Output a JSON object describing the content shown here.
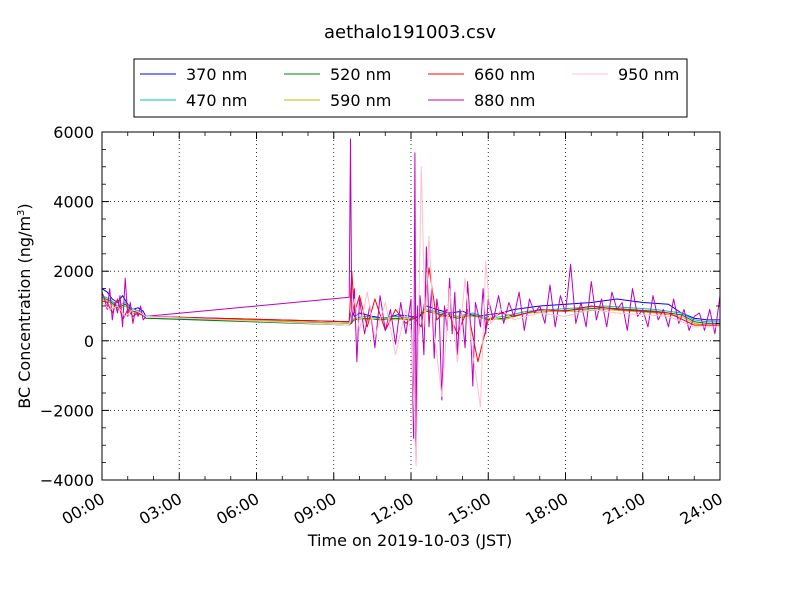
{
  "chart_data": {
    "type": "line",
    "title": "aethalo191003.csv",
    "xlabel": "Time on 2019-10-03 (JST)",
    "ylabel": "BC Concentration (ng/m³)",
    "ylabel_base": "BC Concentration (ng/m",
    "ylabel_sup": "3",
    "ylabel_close": ")",
    "xlim": [
      0,
      24
    ],
    "ylim": [
      -4000,
      6000
    ],
    "grid": true,
    "legend": "top-center",
    "x_ticks": [
      0,
      3,
      6,
      9,
      12,
      15,
      18,
      21,
      24
    ],
    "x_tick_labels": [
      "00:00",
      "03:00",
      "06:00",
      "09:00",
      "12:00",
      "15:00",
      "18:00",
      "21:00",
      "24:00"
    ],
    "y_ticks": [
      -4000,
      -2000,
      0,
      2000,
      4000,
      6000
    ],
    "y_tick_labels": [
      "−4000",
      "−2000",
      "0",
      "2000",
      "4000",
      "6000"
    ],
    "series": [
      {
        "name": "370 nm",
        "color": "#0000ff",
        "x": [
          0.0,
          0.2,
          0.4,
          0.6,
          0.8,
          1.0,
          1.2,
          1.4,
          1.6,
          1.7,
          9.6,
          9.7,
          9.8,
          10.0,
          10.5,
          11.0,
          11.5,
          12.0,
          12.3,
          12.6,
          13.0,
          13.5,
          14.0,
          14.5,
          15.0,
          15.5,
          16.0,
          17.0,
          18.0,
          19.0,
          20.0,
          21.0,
          22.0,
          22.5,
          23.0,
          23.5,
          24.0
        ],
        "y": [
          1500,
          1400,
          1200,
          1100,
          1300,
          1050,
          900,
          950,
          850,
          700,
          550,
          900,
          700,
          800,
          700,
          650,
          750,
          700,
          650,
          1000,
          900,
          800,
          850,
          700,
          750,
          800,
          900,
          1000,
          1050,
          1100,
          1200,
          1100,
          1050,
          800,
          650,
          600,
          600
        ]
      },
      {
        "name": "470 nm",
        "color": "#00bfbf",
        "x": [
          0.0,
          0.3,
          0.6,
          0.9,
          1.2,
          1.5,
          1.7,
          9.6,
          9.8,
          10.2,
          10.8,
          11.4,
          12.0,
          12.6,
          13.2,
          13.8,
          14.4,
          15.0,
          15.6,
          16.5,
          17.5,
          18.5,
          19.5,
          20.5,
          21.5,
          22.5,
          23.0,
          23.5,
          24.0
        ],
        "y": [
          1300,
          1200,
          1000,
          1100,
          900,
          850,
          650,
          500,
          650,
          700,
          650,
          700,
          650,
          900,
          800,
          700,
          800,
          650,
          700,
          850,
          900,
          950,
          1000,
          950,
          900,
          800,
          600,
          550,
          550
        ]
      },
      {
        "name": "520 nm",
        "color": "#008000",
        "x": [
          0.0,
          0.3,
          0.6,
          0.9,
          1.2,
          1.5,
          1.7,
          9.6,
          9.8,
          10.2,
          10.8,
          11.4,
          12.0,
          12.6,
          13.2,
          13.8,
          14.4,
          15.0,
          15.6,
          16.5,
          17.5,
          18.5,
          19.5,
          20.5,
          21.5,
          22.5,
          23.0,
          23.5,
          24.0
        ],
        "y": [
          1250,
          1150,
          950,
          1050,
          850,
          800,
          650,
          450,
          600,
          650,
          600,
          650,
          600,
          850,
          750,
          650,
          750,
          600,
          650,
          800,
          850,
          900,
          950,
          900,
          850,
          750,
          550,
          500,
          500
        ]
      },
      {
        "name": "590 nm",
        "color": "#bfbf00",
        "x": [
          0.0,
          0.3,
          0.6,
          0.9,
          1.2,
          1.5,
          1.7,
          9.6,
          9.8,
          10.2,
          10.8,
          11.4,
          12.0,
          12.6,
          13.2,
          13.8,
          14.4,
          15.0,
          15.6,
          16.5,
          17.5,
          18.5,
          19.5,
          20.5,
          21.5,
          22.5,
          23.0,
          23.5,
          24.0
        ],
        "y": [
          1200,
          1100,
          900,
          1000,
          800,
          750,
          700,
          500,
          650,
          600,
          650,
          600,
          650,
          900,
          700,
          700,
          700,
          650,
          600,
          800,
          850,
          850,
          900,
          850,
          800,
          700,
          500,
          450,
          450
        ]
      },
      {
        "name": "660 nm",
        "color": "#ff0000",
        "x": [
          0.0,
          0.2,
          0.4,
          0.6,
          0.8,
          1.0,
          1.2,
          1.4,
          1.7,
          9.6,
          9.7,
          9.8,
          10.0,
          10.3,
          10.6,
          11.0,
          11.4,
          11.8,
          12.1,
          12.4,
          12.7,
          13.0,
          13.4,
          13.8,
          14.2,
          14.6,
          15.0,
          15.5,
          16.0,
          17.0,
          18.0,
          19.0,
          20.0,
          21.0,
          22.0,
          23.0,
          24.0
        ],
        "y": [
          1150,
          1100,
          800,
          1200,
          600,
          900,
          700,
          800,
          700,
          550,
          2000,
          800,
          1300,
          400,
          1200,
          300,
          900,
          500,
          700,
          400,
          2100,
          600,
          900,
          200,
          900,
          -600,
          600,
          800,
          700,
          900,
          850,
          1000,
          900,
          850,
          800,
          450,
          450
        ]
      },
      {
        "name": "880 nm",
        "color": "#bf00bf",
        "x": [
          0.0,
          0.1,
          0.2,
          0.3,
          0.4,
          0.5,
          0.6,
          0.7,
          0.8,
          0.9,
          1.0,
          1.1,
          1.2,
          1.3,
          1.4,
          1.5,
          1.6,
          1.7,
          9.6,
          9.65,
          9.7,
          9.8,
          9.9,
          10.0,
          10.2,
          10.4,
          10.6,
          10.8,
          11.0,
          11.2,
          11.4,
          11.6,
          11.8,
          12.0,
          12.1,
          12.15,
          12.2,
          12.25,
          12.3,
          12.35,
          12.4,
          12.5,
          12.6,
          12.7,
          12.8,
          12.9,
          13.0,
          13.1,
          13.2,
          13.3,
          13.4,
          13.5,
          13.6,
          13.7,
          13.8,
          13.9,
          14.0,
          14.1,
          14.2,
          14.3,
          14.4,
          14.5,
          14.6,
          14.7,
          14.8,
          14.9,
          15.0,
          15.2,
          15.4,
          15.6,
          15.8,
          16.0,
          16.2,
          16.4,
          16.6,
          16.8,
          17.0,
          17.2,
          17.4,
          17.6,
          17.8,
          18.0,
          18.2,
          18.4,
          18.6,
          18.8,
          19.0,
          19.2,
          19.4,
          19.6,
          19.8,
          20.0,
          20.2,
          20.4,
          20.6,
          20.8,
          21.0,
          21.2,
          21.4,
          21.6,
          21.8,
          22.0,
          22.2,
          22.4,
          22.6,
          22.8,
          23.0,
          23.2,
          23.4,
          23.6,
          23.8,
          24.0
        ],
        "y": [
          1400,
          1200,
          900,
          1500,
          600,
          1100,
          800,
          1300,
          400,
          1800,
          700,
          1100,
          500,
          900,
          700,
          1000,
          600,
          700,
          1250,
          5800,
          500,
          1500,
          -600,
          1200,
          200,
          1000,
          -200,
          1300,
          300,
          900,
          -100,
          1100,
          200,
          1200,
          -2800,
          5400,
          -3400,
          1000,
          200,
          1300,
          900,
          -400,
          2700,
          400,
          1500,
          -500,
          1200,
          700,
          -1700,
          1000,
          300,
          1800,
          200,
          1400,
          -400,
          900,
          600,
          -200,
          1700,
          600,
          -1300,
          1100,
          800,
          400,
          1500,
          200,
          1200,
          600,
          1300,
          500,
          1100,
          700,
          1400,
          300,
          1200,
          800,
          1000,
          500,
          1600,
          400,
          1300,
          800,
          2200,
          500,
          1100,
          400,
          1700,
          600,
          1200,
          400,
          1400,
          900,
          1100,
          300,
          1500,
          700,
          900,
          400,
          1300,
          600,
          900,
          400,
          1200,
          500,
          900,
          300,
          700,
          800,
          300,
          900,
          200,
          1300
        ]
      },
      {
        "name": "950 nm",
        "color": "#ffc0cb",
        "x": [
          0.0,
          0.3,
          0.6,
          0.9,
          1.2,
          1.5,
          1.7,
          9.6,
          9.8,
          10.0,
          10.3,
          10.6,
          11.0,
          11.4,
          11.8,
          12.0,
          12.2,
          12.4,
          12.55,
          12.7,
          12.9,
          13.2,
          13.5,
          13.8,
          14.1,
          14.4,
          14.7,
          14.9,
          15.1,
          15.5,
          16.0,
          17.0,
          18.0,
          19.0,
          20.0,
          21.0,
          22.0,
          23.0,
          24.0
        ],
        "y": [
          1100,
          900,
          1000,
          700,
          900,
          800,
          700,
          450,
          1200,
          300,
          1400,
          100,
          1100,
          -400,
          900,
          300,
          -3600,
          5000,
          400,
          3000,
          200,
          -1600,
          1500,
          -600,
          1800,
          -400,
          -1900,
          2300,
          500,
          900,
          600,
          800,
          700,
          900,
          800,
          750,
          700,
          400,
          400
        ]
      }
    ]
  }
}
